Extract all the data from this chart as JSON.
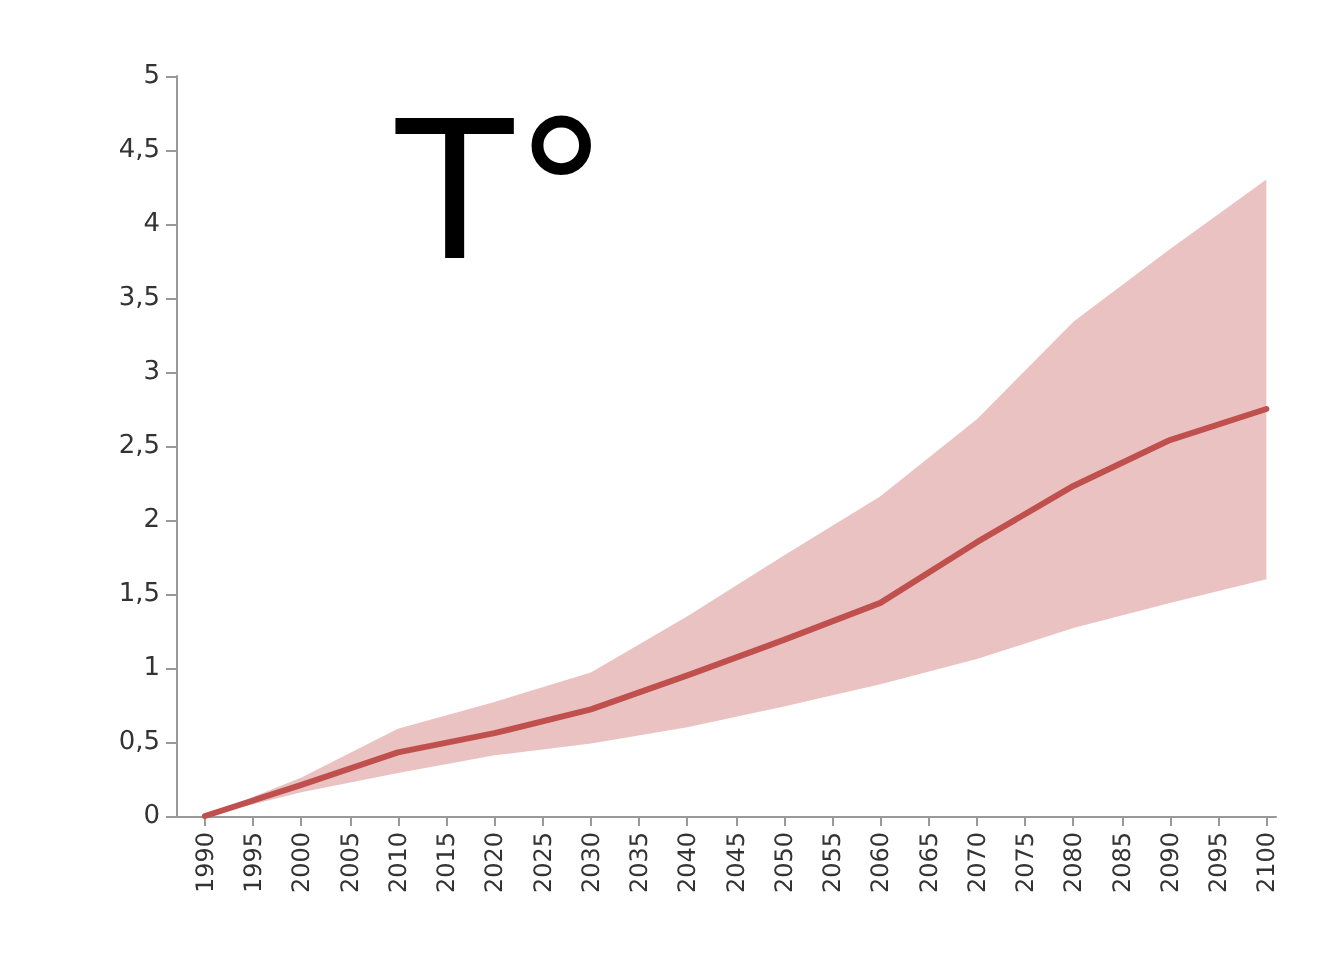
{
  "chart_data": {
    "type": "line",
    "annotations": [
      "T°"
    ],
    "x": [
      1990,
      2000,
      2010,
      2020,
      2030,
      2040,
      2050,
      2060,
      2070,
      2080,
      2090,
      2100
    ],
    "series": [
      {
        "color": "#c0504d",
        "values": [
          0,
          0.21,
          0.43,
          0.56,
          0.72,
          0.95,
          1.19,
          1.44,
          1.85,
          2.23,
          2.54,
          2.75
        ],
        "lower": [
          0,
          0.16,
          0.29,
          0.41,
          0.49,
          0.6,
          0.74,
          0.89,
          1.06,
          1.27,
          1.44,
          1.6
        ],
        "upper": [
          0,
          0.26,
          0.59,
          0.77,
          0.97,
          1.35,
          1.76,
          2.16,
          2.68,
          3.34,
          3.83,
          4.3
        ]
      }
    ],
    "xlim": [
      1987,
      2101
    ],
    "xticks": [
      1990,
      1995,
      2000,
      2005,
      2010,
      2015,
      2020,
      2025,
      2030,
      2035,
      2040,
      2045,
      2050,
      2055,
      2060,
      2065,
      2070,
      2075,
      2080,
      2085,
      2090,
      2095,
      2100
    ],
    "ylim": [
      0,
      5
    ],
    "yticks": [
      0,
      {
        "value": 0.5,
        "label": "0,5"
      },
      1,
      {
        "value": 1.5,
        "label": "1,5"
      },
      2,
      {
        "value": 2.5,
        "label": "2,5"
      },
      3,
      {
        "value": 3.5,
        "label": "3,5"
      },
      4,
      {
        "value": 4.5,
        "label": "4,5"
      },
      5
    ],
    "grid": false,
    "marker": "none",
    "line_style": "solid"
  }
}
